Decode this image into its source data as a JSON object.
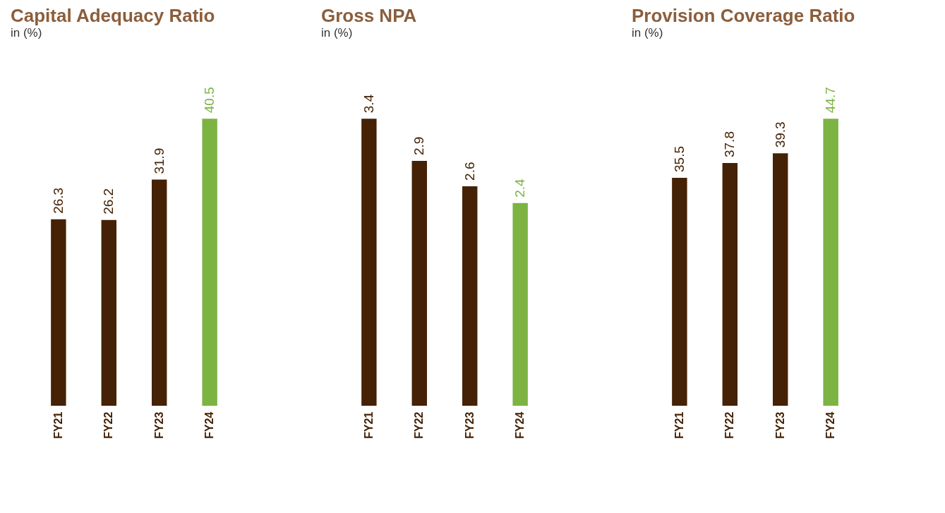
{
  "chart_data": [
    {
      "type": "bar",
      "title": "Capital Adequacy Ratio",
      "subtitle": "in (%)",
      "categories": [
        "FY21",
        "FY22",
        "FY23",
        "FY24"
      ],
      "values": [
        26.3,
        26.2,
        31.9,
        40.5
      ],
      "colors": [
        "#452205",
        "#452205",
        "#452205",
        "#7cb342"
      ],
      "data_labels": true,
      "tick_labels": "x"
    },
    {
      "type": "bar",
      "title": "Gross NPA",
      "subtitle": "in (%)",
      "categories": [
        "FY21",
        "FY22",
        "FY23",
        "FY24"
      ],
      "values": [
        3.4,
        2.9,
        2.6,
        2.4
      ],
      "colors": [
        "#452205",
        "#452205",
        "#452205",
        "#7cb342"
      ],
      "data_labels": true,
      "tick_labels": "x"
    },
    {
      "type": "bar",
      "title": "Provision Coverage Ratio",
      "subtitle": "in (%)",
      "categories": [
        "FY21",
        "FY22",
        "FY23",
        "FY24"
      ],
      "values": [
        35.5,
        37.8,
        39.3,
        44.7
      ],
      "colors": [
        "#452205",
        "#452205",
        "#452205",
        "#7cb342"
      ],
      "data_labels": true,
      "tick_labels": "x"
    }
  ]
}
